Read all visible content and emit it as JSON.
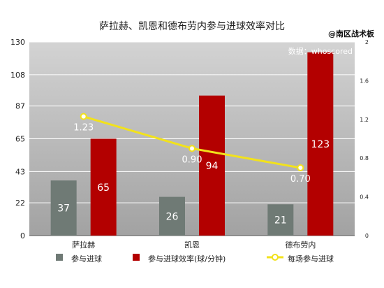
{
  "chart_data": {
    "type": "bar",
    "title": "萨拉赫、凯恩和德布劳内参与进球效率对比",
    "watermark": "@南区战术板",
    "source_note": "数据：whoscored",
    "categories": [
      "萨拉赫",
      "凯恩",
      "德布劳内"
    ],
    "series": [
      {
        "name": "参与进球",
        "type": "bar",
        "axis": "left",
        "color": "#6f7a75",
        "values": [
          37,
          26,
          21
        ]
      },
      {
        "name": "参与进球效率(球/分钟)",
        "type": "bar",
        "axis": "left",
        "color": "#b30000",
        "values": [
          65,
          94,
          123
        ]
      },
      {
        "name": "每场参与进球",
        "type": "line",
        "axis": "right",
        "color": "#f2e21b",
        "values": [
          1.23,
          0.9,
          0.7
        ]
      }
    ],
    "y_left": {
      "min": 0,
      "max": 130,
      "ticks": [
        0,
        22,
        43,
        65,
        87,
        108,
        130
      ]
    },
    "y_right": {
      "min": 0,
      "max": 2,
      "ticks": [
        0,
        0.4,
        0.8,
        1.2,
        1.6,
        2
      ]
    },
    "data_labels": {
      "bars": [
        [
          "37",
          "26",
          "21"
        ],
        [
          "65",
          "94",
          "123"
        ]
      ],
      "line": [
        "1.23",
        "0.90",
        "0.70"
      ]
    },
    "legend_position": "bottom",
    "colors": {
      "plot_bg_top": "#d3d3d3",
      "plot_bg_bottom": "#a2a2a2",
      "grid": "#ffffff",
      "axis_text": "#222222"
    }
  }
}
